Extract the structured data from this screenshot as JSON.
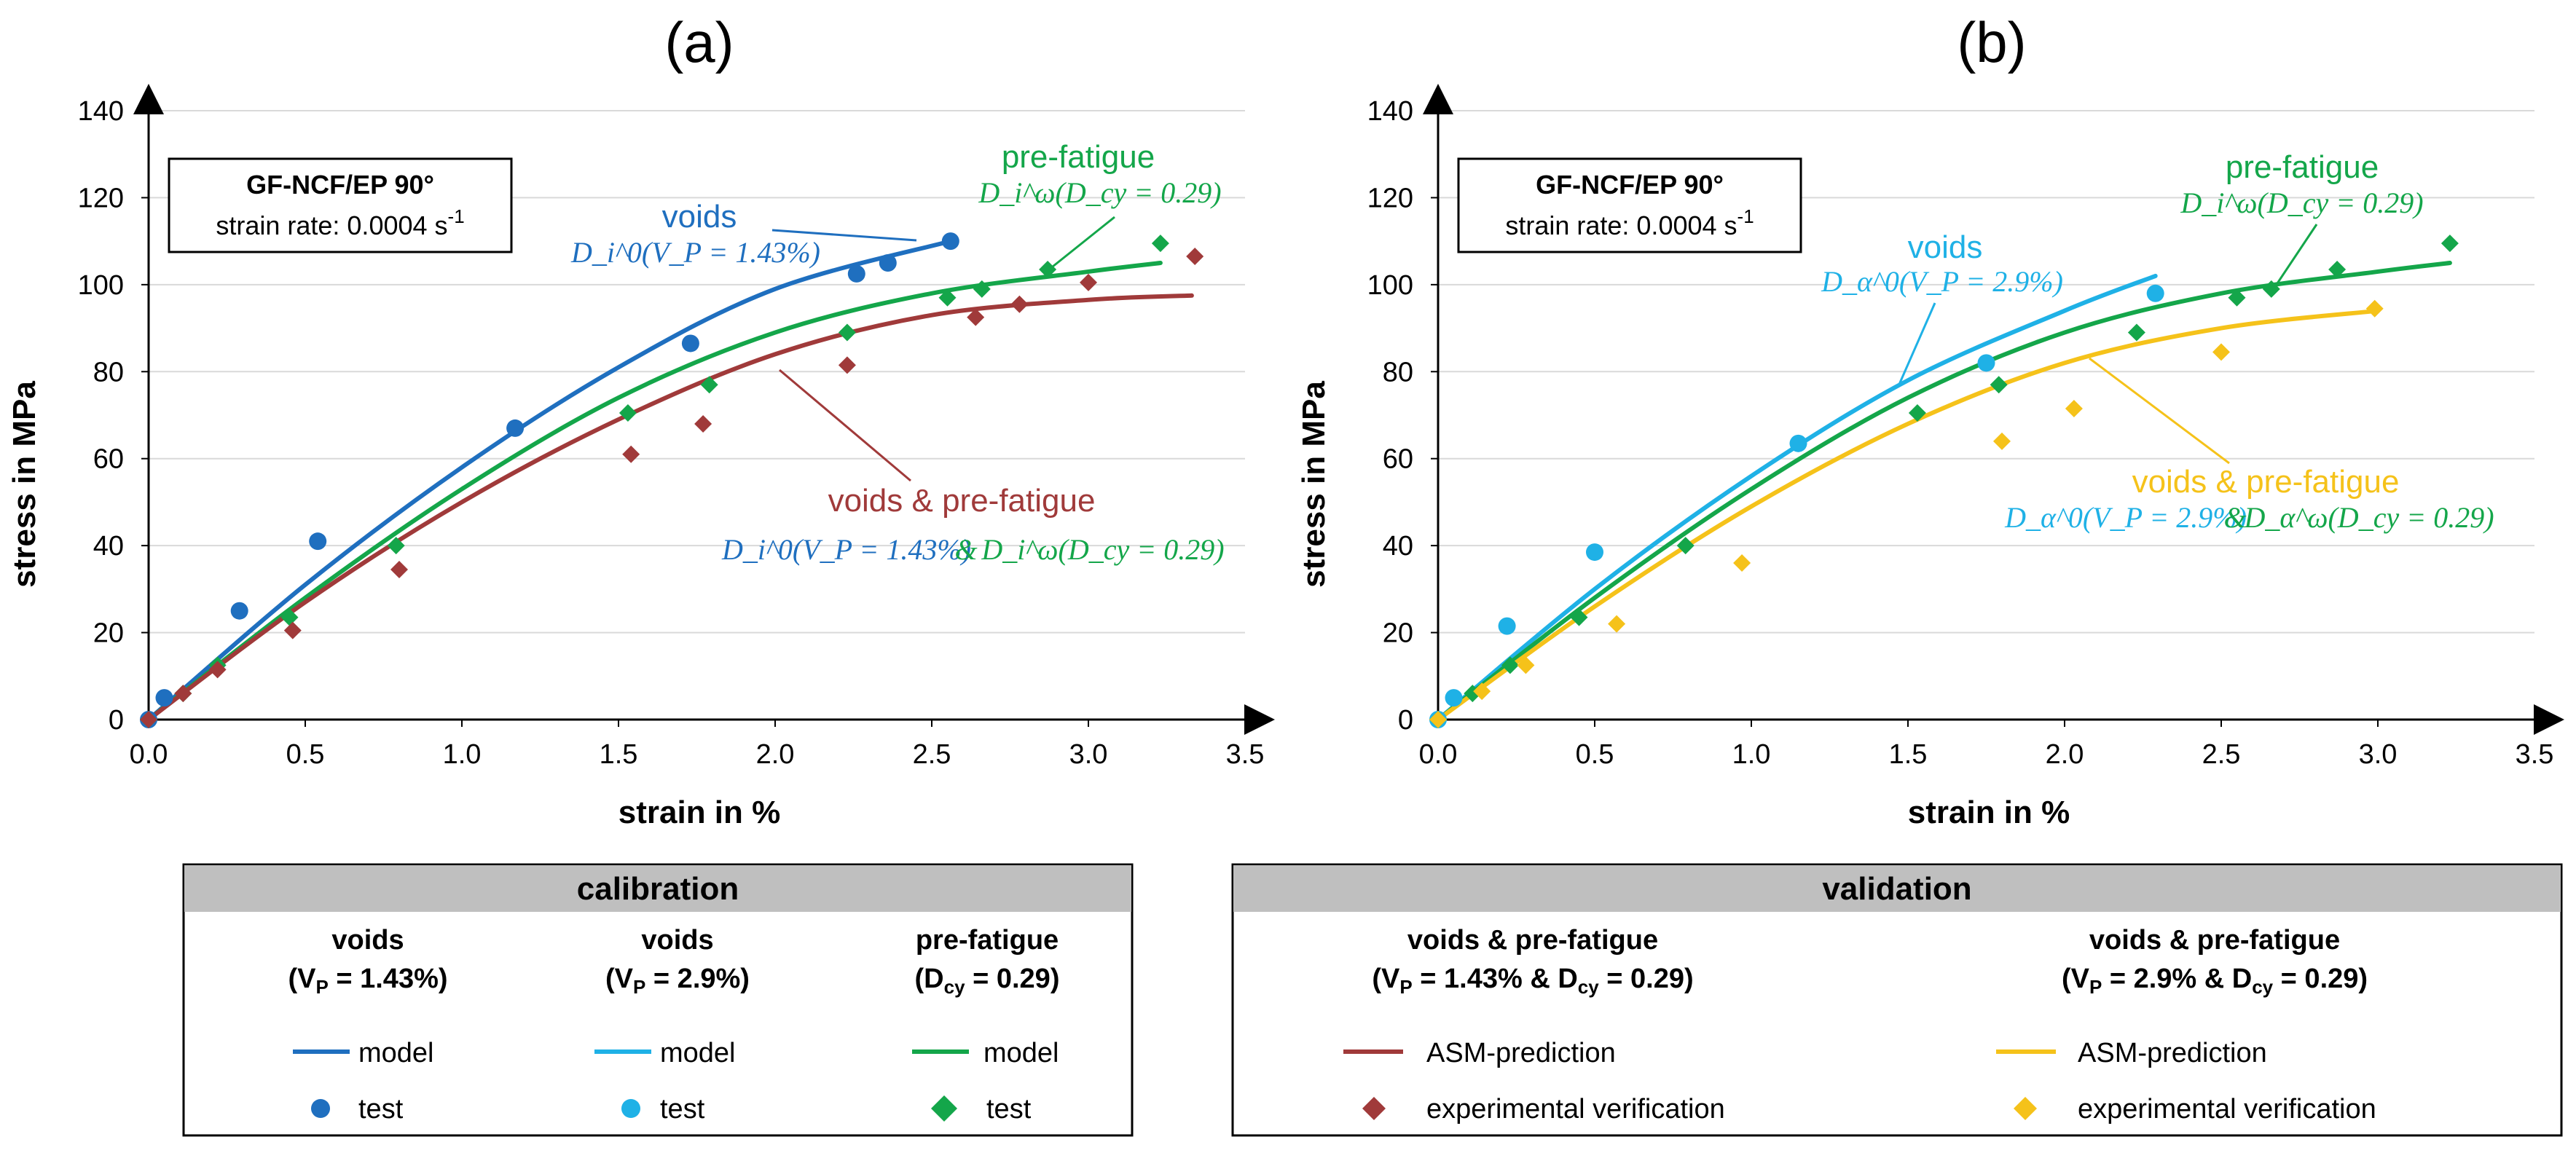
{
  "colors": {
    "voids_143": "#1f6fbf",
    "voids_29": "#1fb1e6",
    "prefatigue": "#14a64a",
    "asm_143": "#a03a3a",
    "asm_29": "#f5c21a",
    "grid": "#d9d9d9",
    "legend_header": "#bfbfbf"
  },
  "chart_data": [
    {
      "type": "line",
      "panel_label": "(a)",
      "xlabel": "strain in %",
      "ylabel": "stress in MPa",
      "xlim": [
        0,
        3.5
      ],
      "ylim": [
        0,
        140
      ],
      "x_ticks": [
        "0.0",
        "0.5",
        "1.0",
        "1.5",
        "2.0",
        "2.5",
        "3.0",
        "3.5"
      ],
      "y_ticks": [
        "0",
        "20",
        "40",
        "60",
        "80",
        "100",
        "120",
        "140"
      ],
      "info_box": {
        "title": "GF-NCF/EP 90°",
        "subtitle_main": "strain rate: 0.0004 s",
        "subtitle_sup": "-1"
      },
      "series": [
        {
          "name": "voids model",
          "kind": "line",
          "color_key": "voids_143",
          "x": [
            0,
            0.5,
            1.0,
            1.5,
            2.0,
            2.56
          ],
          "y": [
            0,
            31,
            58,
            81,
            99,
            110
          ]
        },
        {
          "name": "pre-fatigue model",
          "kind": "line",
          "color_key": "prefatigue",
          "x": [
            0,
            0.5,
            1.0,
            1.5,
            2.0,
            2.5,
            3.0,
            3.23
          ],
          "y": [
            0,
            28,
            53,
            74,
            89,
            98,
            103,
            105
          ]
        },
        {
          "name": "ASM-prediction voids & pre-fatigue",
          "kind": "line",
          "color_key": "asm_143",
          "x": [
            0,
            0.5,
            1.0,
            1.5,
            2.0,
            2.5,
            3.0,
            3.33
          ],
          "y": [
            0,
            27,
            50,
            69,
            84,
            93,
            96.5,
            97.5
          ]
        },
        {
          "name": "voids test",
          "kind": "circle",
          "color_key": "voids_143",
          "x": [
            0.0,
            0.05,
            0.29,
            0.54,
            1.17,
            1.73,
            2.26,
            2.36,
            2.56
          ],
          "y": [
            0,
            5,
            25,
            41,
            67,
            86.5,
            102.5,
            105,
            110
          ]
        },
        {
          "name": "pre-fatigue test",
          "kind": "diamond",
          "color_key": "prefatigue",
          "x": [
            0.0,
            0.11,
            0.22,
            0.45,
            0.79,
            1.53,
            1.79,
            2.23,
            2.55,
            2.66,
            2.87,
            3.23
          ],
          "y": [
            0,
            6,
            12.5,
            23.5,
            40,
            70.5,
            77,
            89,
            97,
            99,
            103.5,
            109.5
          ]
        },
        {
          "name": "experimental verification",
          "kind": "diamond",
          "color_key": "asm_143",
          "x": [
            0.0,
            0.11,
            0.22,
            0.46,
            0.8,
            1.54,
            1.77,
            2.23,
            2.64,
            2.78,
            3.0,
            3.34
          ],
          "y": [
            0,
            6,
            11.5,
            20.5,
            34.5,
            61,
            68,
            81.5,
            92.5,
            95.5,
            100.5,
            106.5
          ]
        }
      ],
      "annotations": [
        {
          "label": "voids",
          "math": "D_i^0(V_P = 1.43%)",
          "color_key": "voids_143"
        },
        {
          "label": "pre-fatigue",
          "math": "D_i^ω(D_cy = 0.29)",
          "color_key": "prefatigue"
        },
        {
          "label": "voids & pre-fatigue",
          "math_a": "D_i^0(V_P = 1.43%)",
          "amp": "&",
          "math_b": "D_i^ω(D_cy = 0.29)",
          "color_key": "asm_143"
        }
      ]
    },
    {
      "type": "line",
      "panel_label": "(b)",
      "xlabel": "strain in %",
      "ylabel": "stress in MPa",
      "xlim": [
        0,
        3.5
      ],
      "ylim": [
        0,
        140
      ],
      "x_ticks": [
        "0.0",
        "0.5",
        "1.0",
        "1.5",
        "2.0",
        "2.5",
        "3.0",
        "3.5"
      ],
      "y_ticks": [
        "0",
        "20",
        "40",
        "60",
        "80",
        "100",
        "120",
        "140"
      ],
      "info_box": {
        "title": "GF-NCF/EP 90°",
        "subtitle_main": "strain rate: 0.0004 s",
        "subtitle_sup": "-1"
      },
      "series": [
        {
          "name": "voids model",
          "kind": "line",
          "color_key": "voids_29",
          "x": [
            0,
            0.5,
            1.0,
            1.5,
            2.0,
            2.29
          ],
          "y": [
            0,
            30,
            56,
            78,
            94,
            102
          ]
        },
        {
          "name": "pre-fatigue model",
          "kind": "line",
          "color_key": "prefatigue",
          "x": [
            0,
            0.5,
            1.0,
            1.5,
            2.0,
            2.5,
            3.0,
            3.23
          ],
          "y": [
            0,
            28,
            53,
            74,
            89,
            98,
            103,
            105
          ]
        },
        {
          "name": "ASM-prediction voids & pre-fatigue",
          "kind": "line",
          "color_key": "asm_29",
          "x": [
            0,
            0.5,
            1.0,
            1.5,
            2.0,
            2.5,
            3.0
          ],
          "y": [
            0,
            26,
            49,
            68,
            82,
            90,
            94
          ]
        },
        {
          "name": "voids test",
          "kind": "circle",
          "color_key": "voids_29",
          "x": [
            0.0,
            0.05,
            0.22,
            0.5,
            1.15,
            1.75,
            2.29
          ],
          "y": [
            0,
            5,
            21.5,
            38.5,
            63.5,
            82,
            98
          ]
        },
        {
          "name": "pre-fatigue test",
          "kind": "diamond",
          "color_key": "prefatigue",
          "x": [
            0.0,
            0.11,
            0.23,
            0.45,
            0.79,
            1.53,
            1.79,
            2.23,
            2.55,
            2.66,
            2.87,
            3.23
          ],
          "y": [
            0,
            6,
            12.5,
            23.5,
            40,
            70.5,
            77,
            89,
            97,
            99,
            103.5,
            109.5
          ]
        },
        {
          "name": "experimental verification",
          "kind": "diamond",
          "color_key": "asm_29",
          "x": [
            0.0,
            0.14,
            0.28,
            0.57,
            0.97,
            1.8,
            2.03,
            2.5,
            2.99
          ],
          "y": [
            0,
            6.5,
            12.5,
            22,
            36,
            64,
            71.5,
            84.5,
            94.5
          ]
        }
      ],
      "annotations": [
        {
          "label": "voids",
          "math": "D_α^0(V_P = 2.9%)",
          "color_key": "voids_29"
        },
        {
          "label": "pre-fatigue",
          "math": "D_i^ω(D_cy = 0.29)",
          "color_key": "prefatigue"
        },
        {
          "label": "voids & pre-fatigue",
          "math_a": "D_α^0(V_P = 2.9%)",
          "amp": "&",
          "math_b": "D_α^ω(D_cy = 0.29)",
          "color_key": "asm_29"
        }
      ]
    }
  ],
  "legend": {
    "calibration": {
      "header": "calibration",
      "columns": [
        {
          "title": "voids",
          "param": "(V",
          "param_sub": "P",
          "param_rest": " = 1.43%)",
          "model": "model",
          "test": "test",
          "line_key": "voids_143",
          "marker": "circle"
        },
        {
          "title": "voids",
          "param": "(V",
          "param_sub": "P",
          "param_rest": " = 2.9%)",
          "model": "model",
          "test": "test",
          "line_key": "voids_29",
          "marker": "circle"
        },
        {
          "title": "pre-fatigue",
          "param": "(D",
          "param_sub": "cy",
          "param_rest": " = 0.29)",
          "model": "model",
          "test": "test",
          "line_key": "prefatigue",
          "marker": "diamond"
        }
      ]
    },
    "validation": {
      "header": "validation",
      "columns": [
        {
          "title": "voids & pre-fatigue",
          "p1": "(V",
          "p1_sub": "P",
          "p1_rest": " = 1.43% & D",
          "p2_sub": "cy",
          "p2_rest": " = 0.29)",
          "model": "ASM-prediction",
          "test": "experimental verification",
          "line_key": "asm_143",
          "marker": "diamond"
        },
        {
          "title": "voids & pre-fatigue",
          "p1": "(V",
          "p1_sub": "P",
          "p1_rest": " = 2.9% & D",
          "p2_sub": "cy",
          "p2_rest": " = 0.29)",
          "model": "ASM-prediction",
          "test": "experimental verification",
          "line_key": "asm_29",
          "marker": "diamond"
        }
      ]
    }
  }
}
